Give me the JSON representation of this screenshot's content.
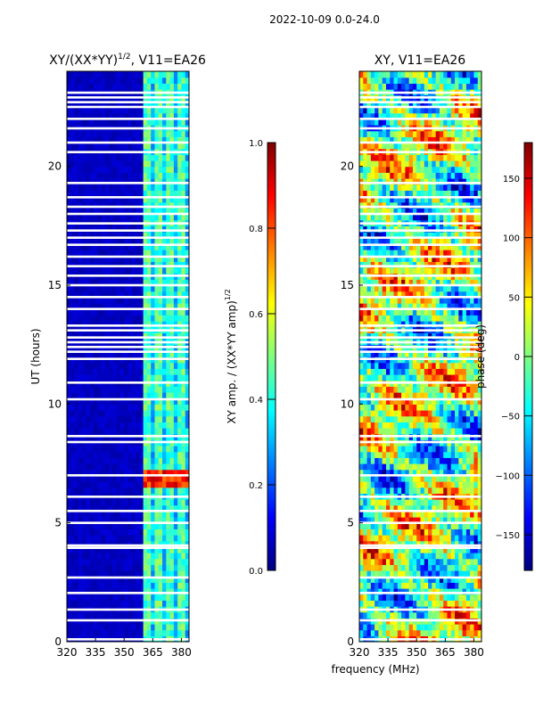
{
  "figure_title": "2022-10-09 0.0-24.0",
  "colors": {
    "jet_stops": [
      "#00007f",
      "#0000ff",
      "#007fff",
      "#00ffff",
      "#7fff7f",
      "#ffff00",
      "#ff7f00",
      "#ff0000",
      "#7f0000"
    ],
    "gap": "#ffffff",
    "axis": "#000000"
  },
  "chart_data": [
    {
      "type": "heatmap",
      "panel": "amplitude",
      "title_main": "XY/(XX*YY)",
      "title_sup": "1/2",
      "title_rest": ", V11=EA26",
      "xlabel": "",
      "ylabel": "UT (hours)",
      "xlim": [
        320,
        384
      ],
      "ylim": [
        0,
        24
      ],
      "xticks": [
        320,
        335,
        350,
        365,
        380
      ],
      "yticks": [
        0,
        5,
        10,
        15,
        20
      ],
      "description_of_values": "low (~0.05) below 360 MHz, elevated (~0.4-0.5) in vertical stripes between 360 and 384 MHz, hot spot near 7 h",
      "colorbar": {
        "label_main": "XY amp. / (XX*YY amp)",
        "label_sup": "1/2",
        "range": [
          0.0,
          1.0
        ],
        "ticks": [
          "0.0",
          "0.2",
          "0.4",
          "0.6",
          "0.8",
          "1.0"
        ],
        "tick_values": [
          0.0,
          0.2,
          0.4,
          0.6,
          0.8,
          1.0
        ]
      }
    },
    {
      "type": "heatmap",
      "panel": "phase",
      "title_main": "XY, V11=EA26",
      "xlabel": "frequency (MHz)",
      "ylabel": "",
      "xlim": [
        320,
        384
      ],
      "ylim": [
        0,
        24
      ],
      "xticks": [
        320,
        335,
        350,
        365,
        380
      ],
      "yticks": [
        0,
        5,
        10,
        15,
        20
      ],
      "description_of_values": "phase varies broadly across the full range, banded in time",
      "colorbar": {
        "label_main": "phase (deg)",
        "range": [
          -180,
          180
        ],
        "ticks": [
          "150",
          "100",
          "50",
          "0",
          "−50",
          "−100",
          "−150"
        ],
        "tick_values": [
          150,
          100,
          50,
          0,
          -50,
          -100,
          -150
        ]
      }
    }
  ],
  "gap_rows_hours": [
    0.1,
    0.9,
    1.35,
    2.05,
    2.7,
    3.95,
    4.05,
    5.0,
    5.5,
    6.1,
    7.0,
    8.4,
    8.65,
    10.2,
    10.9,
    11.9,
    12.2,
    12.4,
    12.6,
    12.8,
    13.1,
    13.3,
    14.0,
    14.5,
    15.0,
    15.4,
    15.8,
    16.2,
    16.7,
    17.0,
    17.3,
    17.6,
    18.0,
    18.3,
    18.7,
    19.3,
    20.6,
    21.0,
    21.6,
    22.0,
    22.5,
    22.7,
    22.9,
    23.1
  ]
}
